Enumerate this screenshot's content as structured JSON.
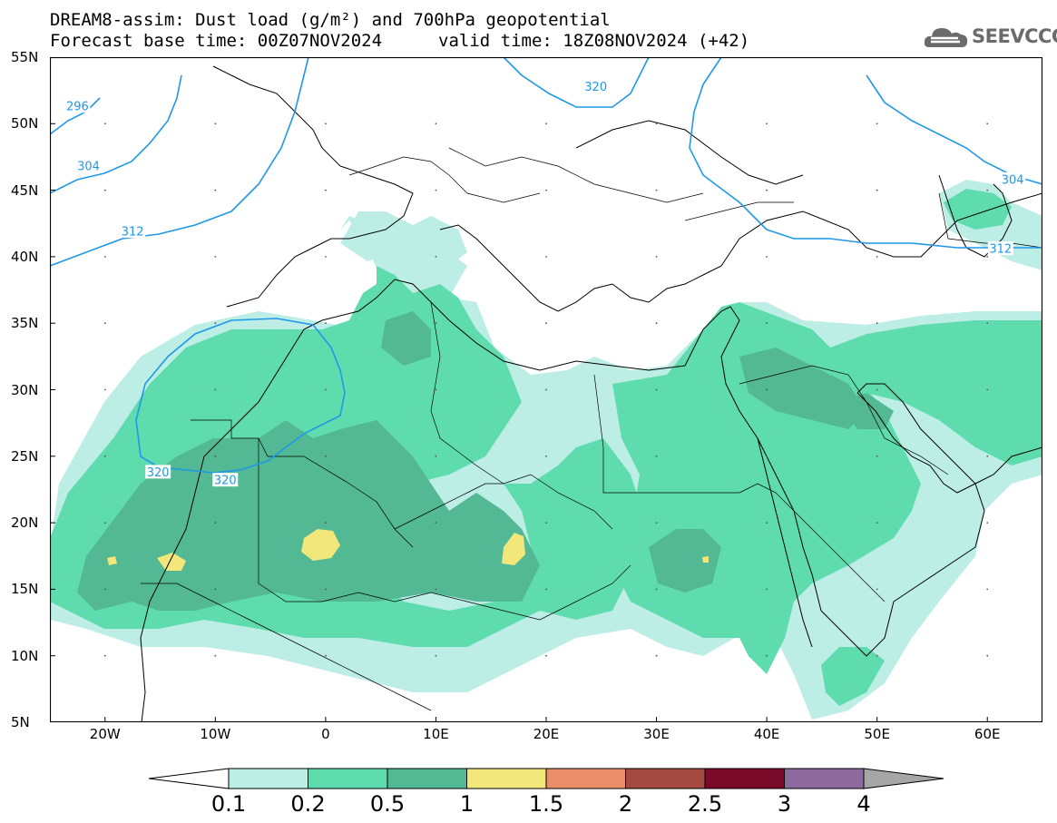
{
  "title": {
    "line1": "DREAM8-assim: Dust load (g/m²) and 700hPa geopotential",
    "line2": "Forecast base time: 00Z07NOV2024",
    "valid": "valid time: 18Z08NOV2024 (+42)"
  },
  "logo": {
    "text": "SEEVCCC",
    "icon": "cloud-icon"
  },
  "map": {
    "lon_range": [
      -25,
      65
    ],
    "lat_range": [
      5,
      55
    ],
    "lat_ticks": [
      {
        "value": 55,
        "label": "55N"
      },
      {
        "value": 50,
        "label": "50N"
      },
      {
        "value": 45,
        "label": "45N"
      },
      {
        "value": 40,
        "label": "40N"
      },
      {
        "value": 35,
        "label": "35N"
      },
      {
        "value": 30,
        "label": "30N"
      },
      {
        "value": 25,
        "label": "25N"
      },
      {
        "value": 20,
        "label": "20N"
      },
      {
        "value": 15,
        "label": "15N"
      },
      {
        "value": 10,
        "label": "10N"
      },
      {
        "value": 5,
        "label": "5N"
      }
    ],
    "lon_ticks": [
      {
        "value": -20,
        "label": "20W"
      },
      {
        "value": -10,
        "label": "10W"
      },
      {
        "value": 0,
        "label": "0"
      },
      {
        "value": 10,
        "label": "10E"
      },
      {
        "value": 20,
        "label": "20E"
      },
      {
        "value": 30,
        "label": "30E"
      },
      {
        "value": 40,
        "label": "40E"
      },
      {
        "value": 50,
        "label": "50E"
      },
      {
        "value": 60,
        "label": "60E"
      }
    ],
    "contour_labels": [
      {
        "text": "296",
        "lon": -22.5,
        "lat": 51.3
      },
      {
        "text": "304",
        "lon": -21.5,
        "lat": 46.8
      },
      {
        "text": "312",
        "lon": -17.5,
        "lat": 41.9
      },
      {
        "text": "320",
        "lon": 24.5,
        "lat": 52.8
      },
      {
        "text": "320",
        "lon": -15.2,
        "lat": 23.8
      },
      {
        "text": "320",
        "lon": -9.1,
        "lat": 23.2
      },
      {
        "text": "304",
        "lon": 62.3,
        "lat": 45.8
      },
      {
        "text": "312",
        "lon": 61.2,
        "lat": 40.6
      }
    ],
    "colors": {
      "coast": "#000000",
      "contour": "#1f98e8"
    }
  },
  "colorbar": {
    "levels": [
      "0.1",
      "0.2",
      "0.5",
      "1",
      "1.5",
      "2",
      "2.5",
      "3",
      "4"
    ],
    "colors": [
      "#bdeee6",
      "#5fdcae",
      "#53b894",
      "#f2e77a",
      "#e98e68",
      "#a54a40",
      "#7a0a2a",
      "#8c6a9e"
    ],
    "under_color": "#ffffff",
    "over_color": "#a6a6a6"
  }
}
